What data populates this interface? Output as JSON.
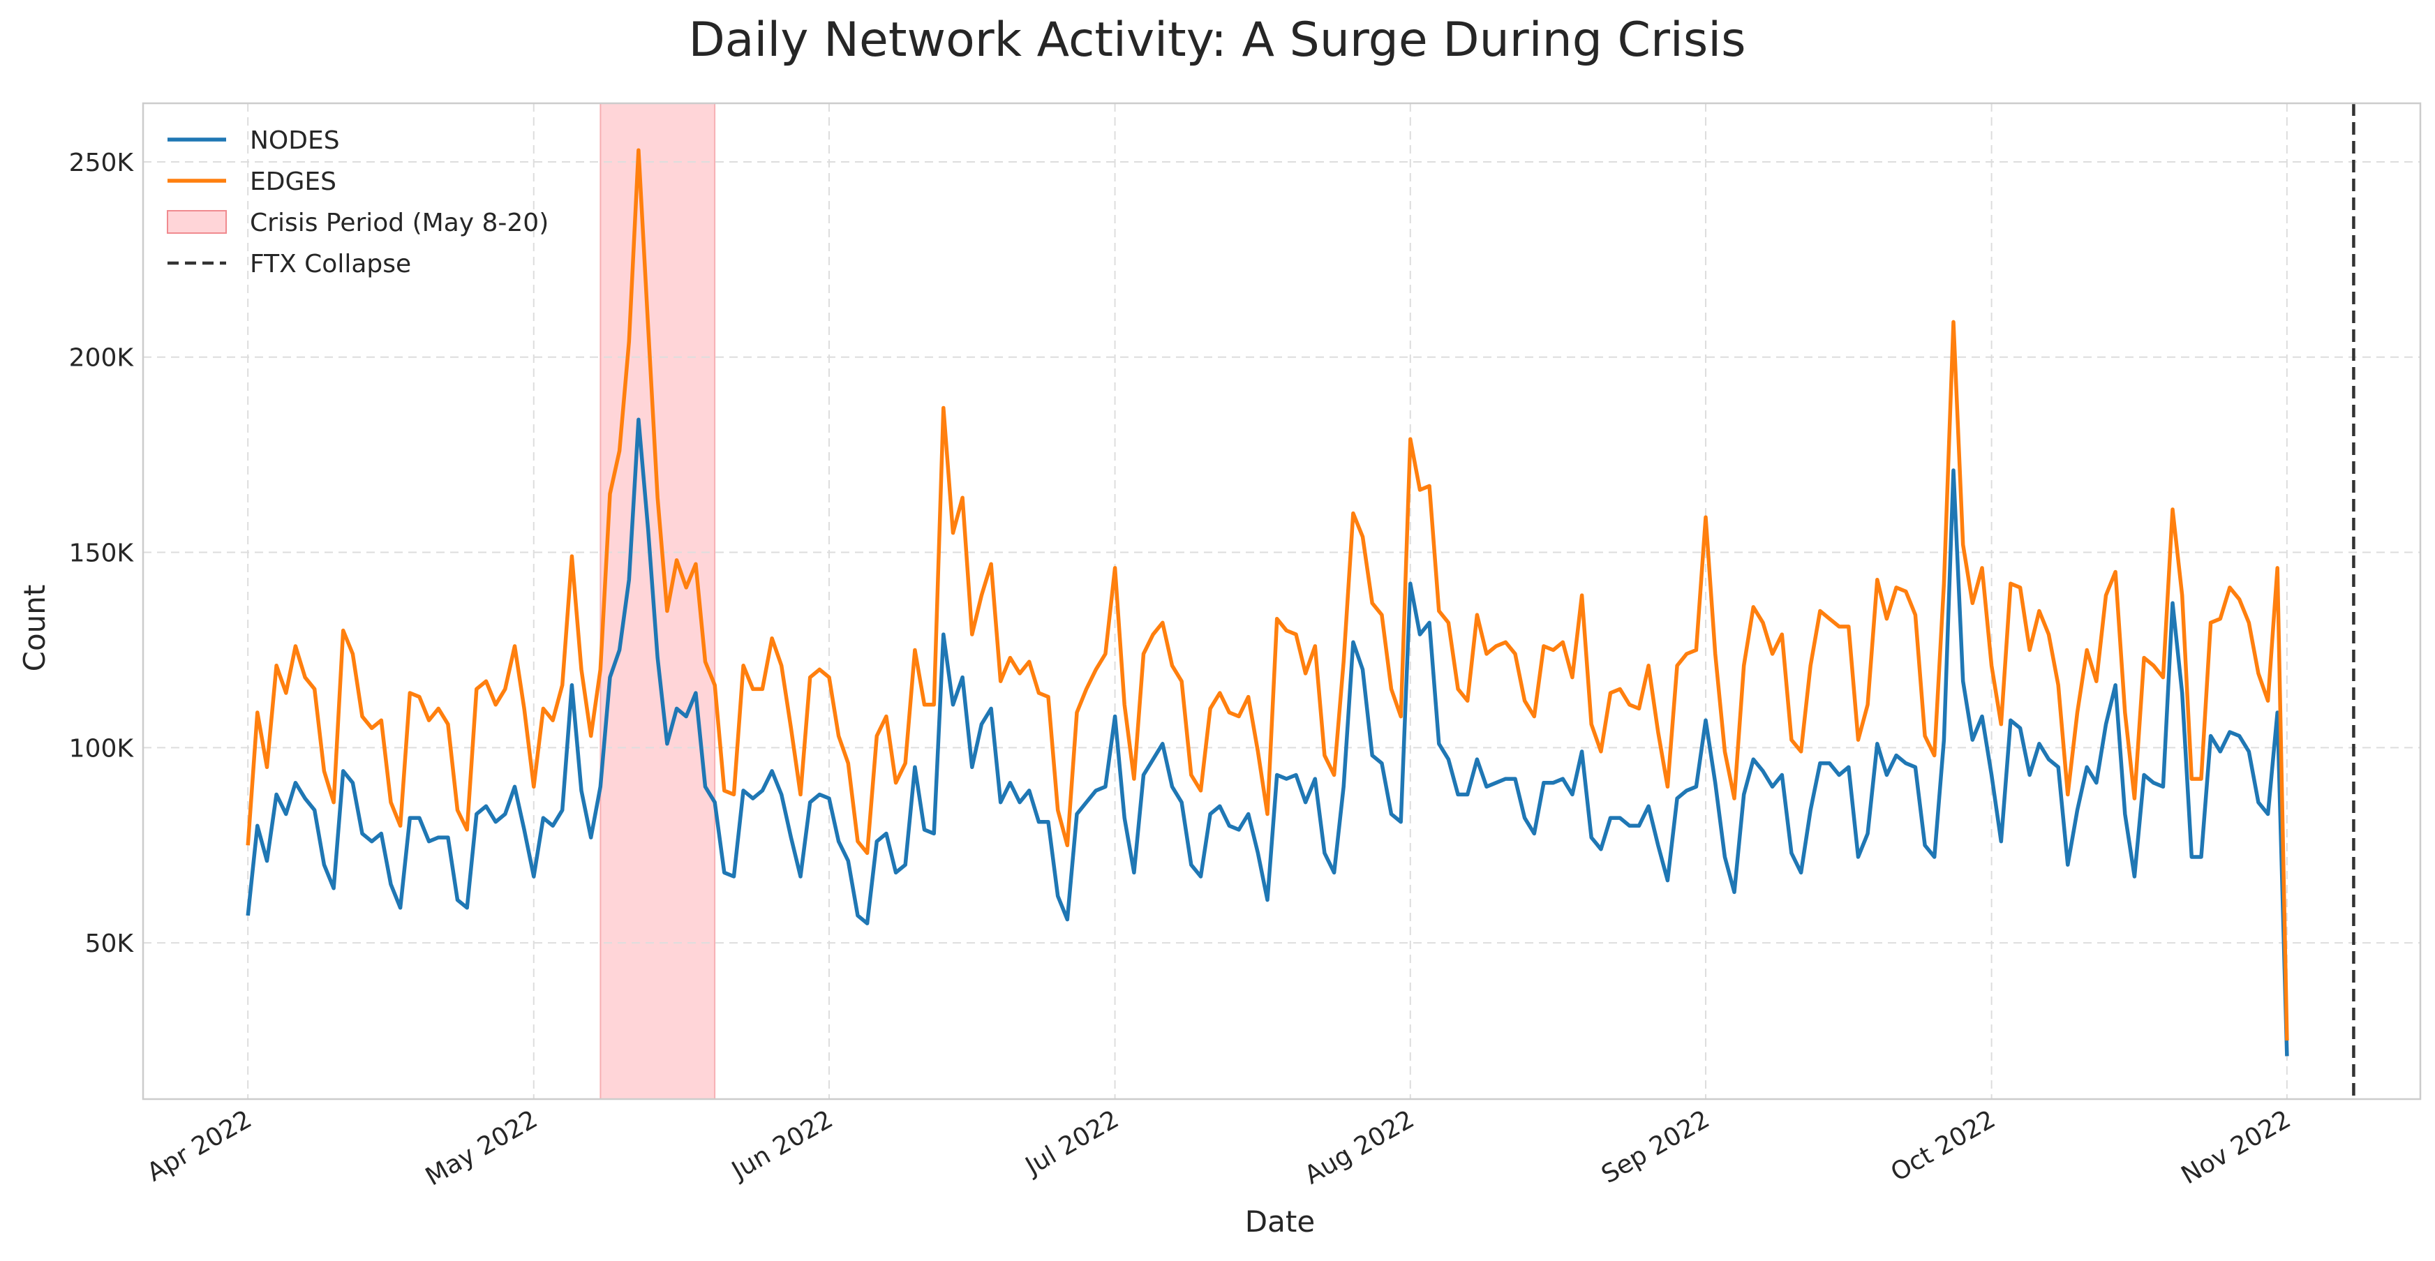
{
  "chart_data": {
    "type": "line",
    "title": "Daily Network Activity: A Surge During Crisis",
    "xlabel": "Date",
    "ylabel": "Count",
    "x_range": [
      "2022-03-21",
      "2022-11-15"
    ],
    "ylim": [
      10000,
      265000
    ],
    "x_ticks": [
      {
        "date": "2022-04-01",
        "label": "Apr 2022"
      },
      {
        "date": "2022-05-01",
        "label": "May 2022"
      },
      {
        "date": "2022-06-01",
        "label": "Jun 2022"
      },
      {
        "date": "2022-07-01",
        "label": "Jul 2022"
      },
      {
        "date": "2022-08-01",
        "label": "Aug 2022"
      },
      {
        "date": "2022-09-01",
        "label": "Sep 2022"
      },
      {
        "date": "2022-10-01",
        "label": "Oct 2022"
      },
      {
        "date": "2022-11-01",
        "label": "Nov 2022"
      }
    ],
    "y_ticks": [
      {
        "value": 50000,
        "label": "50K"
      },
      {
        "value": 100000,
        "label": "100K"
      },
      {
        "value": 150000,
        "label": "150K"
      },
      {
        "value": 200000,
        "label": "200K"
      },
      {
        "value": 250000,
        "label": "250K"
      }
    ],
    "grid": true,
    "legend_position": "top-left",
    "x_start": "2022-04-01",
    "series": [
      {
        "name": "NODES",
        "color": "#1f77b4",
        "values": [
          57000,
          80000,
          71000,
          88000,
          83000,
          91000,
          87000,
          84000,
          70000,
          64000,
          94000,
          91000,
          78000,
          76000,
          78000,
          65000,
          59000,
          82000,
          82000,
          76000,
          77000,
          77000,
          61000,
          59000,
          83000,
          85000,
          81000,
          83000,
          90000,
          79000,
          67000,
          82000,
          80000,
          84000,
          116000,
          89000,
          77000,
          90000,
          118000,
          125000,
          143000,
          184000,
          156000,
          123000,
          101000,
          110000,
          108000,
          114000,
          90000,
          86000,
          68000,
          67000,
          89000,
          87000,
          89000,
          94000,
          88000,
          77000,
          67000,
          86000,
          88000,
          87000,
          76000,
          71000,
          57000,
          55000,
          76000,
          78000,
          68000,
          70000,
          95000,
          79000,
          78000,
          129000,
          111000,
          118000,
          95000,
          106000,
          110000,
          86000,
          91000,
          86000,
          89000,
          81000,
          81000,
          62000,
          56000,
          83000,
          86000,
          89000,
          90000,
          108000,
          82000,
          68000,
          93000,
          97000,
          101000,
          90000,
          86000,
          70000,
          67000,
          83000,
          85000,
          80000,
          79000,
          83000,
          73000,
          61000,
          93000,
          92000,
          93000,
          86000,
          92000,
          73000,
          68000,
          90000,
          127000,
          120000,
          98000,
          96000,
          83000,
          81000,
          142000,
          129000,
          132000,
          101000,
          97000,
          88000,
          88000,
          97000,
          90000,
          91000,
          92000,
          92000,
          82000,
          78000,
          91000,
          91000,
          92000,
          88000,
          99000,
          77000,
          74000,
          82000,
          82000,
          80000,
          80000,
          85000,
          75000,
          66000,
          87000,
          89000,
          90000,
          107000,
          91000,
          72000,
          63000,
          88000,
          97000,
          94000,
          90000,
          93000,
          73000,
          68000,
          84000,
          96000,
          96000,
          93000,
          95000,
          72000,
          78000,
          101000,
          93000,
          98000,
          96000,
          95000,
          75000,
          72000,
          102000,
          171000,
          117000,
          102000,
          108000,
          93000,
          76000,
          107000,
          105000,
          93000,
          101000,
          97000,
          95000,
          70000,
          84000,
          95000,
          91000,
          106000,
          116000,
          83000,
          67000,
          93000,
          91000,
          90000,
          137000,
          114000,
          72000,
          72000,
          103000,
          99000,
          104000,
          103000,
          99000,
          86000,
          83000,
          109000,
          21000
        ]
      },
      {
        "name": "EDGES",
        "color": "#ff7f0e",
        "values": [
          75000,
          109000,
          95000,
          121000,
          114000,
          126000,
          118000,
          115000,
          94000,
          86000,
          130000,
          124000,
          108000,
          105000,
          107000,
          86000,
          80000,
          114000,
          113000,
          107000,
          110000,
          106000,
          84000,
          79000,
          115000,
          117000,
          111000,
          115000,
          126000,
          110000,
          90000,
          110000,
          107000,
          116000,
          149000,
          120000,
          103000,
          120000,
          165000,
          176000,
          204000,
          253000,
          208000,
          164000,
          135000,
          148000,
          141000,
          147000,
          122000,
          116000,
          89000,
          88000,
          121000,
          115000,
          115000,
          128000,
          121000,
          105000,
          88000,
          118000,
          120000,
          118000,
          103000,
          96000,
          76000,
          73000,
          103000,
          108000,
          91000,
          96000,
          125000,
          111000,
          111000,
          187000,
          155000,
          164000,
          129000,
          139000,
          147000,
          117000,
          123000,
          119000,
          122000,
          114000,
          113000,
          84000,
          75000,
          109000,
          115000,
          120000,
          124000,
          146000,
          111000,
          92000,
          124000,
          129000,
          132000,
          121000,
          117000,
          93000,
          89000,
          110000,
          114000,
          109000,
          108000,
          113000,
          99000,
          83000,
          133000,
          130000,
          129000,
          119000,
          126000,
          98000,
          93000,
          122000,
          160000,
          154000,
          137000,
          134000,
          115000,
          108000,
          179000,
          166000,
          167000,
          135000,
          132000,
          115000,
          112000,
          134000,
          124000,
          126000,
          127000,
          124000,
          112000,
          108000,
          126000,
          125000,
          127000,
          118000,
          139000,
          106000,
          99000,
          114000,
          115000,
          111000,
          110000,
          121000,
          104000,
          90000,
          121000,
          124000,
          125000,
          159000,
          124000,
          99000,
          87000,
          121000,
          136000,
          132000,
          124000,
          129000,
          102000,
          99000,
          121000,
          135000,
          133000,
          131000,
          131000,
          102000,
          111000,
          143000,
          133000,
          141000,
          140000,
          134000,
          103000,
          98000,
          142000,
          209000,
          152000,
          137000,
          146000,
          121000,
          106000,
          142000,
          141000,
          125000,
          135000,
          129000,
          116000,
          88000,
          109000,
          125000,
          117000,
          139000,
          145000,
          109000,
          87000,
          123000,
          121000,
          118000,
          161000,
          139000,
          92000,
          92000,
          132000,
          133000,
          141000,
          138000,
          132000,
          119000,
          112000,
          146000,
          25000
        ]
      }
    ],
    "shaded_region": {
      "start": "2022-05-08",
      "end": "2022-05-20",
      "label": "Crisis Period (May 8-20)",
      "color": "#ffb3b8"
    },
    "vline": {
      "date": "2022-11-08",
      "label": "FTX Collapse",
      "color": "#333333"
    }
  }
}
